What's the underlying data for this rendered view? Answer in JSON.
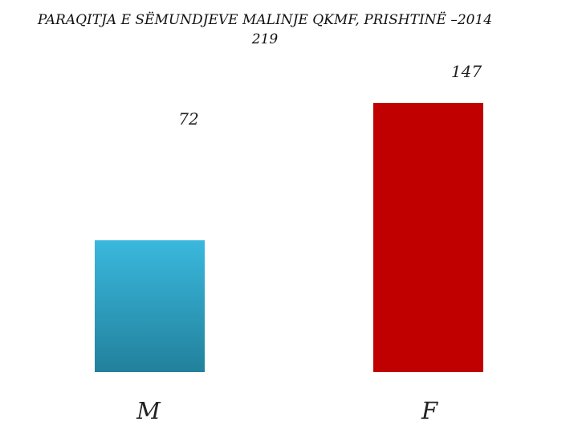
{
  "chart_data": {
    "type": "bar",
    "title": "PARAQITJA E SËMUNDJEVE MALINJE QKMF, PRISHTINË –2014",
    "subtitle": "219",
    "categories": [
      "M",
      "F"
    ],
    "values": [
      72,
      147
    ],
    "data_labels": [
      "72",
      "147"
    ],
    "colors": [
      "#35b3d6",
      "#c00000"
    ],
    "xlabel": "",
    "ylabel": "",
    "ylim": [
      0,
      147
    ],
    "grid": false,
    "legend": "none"
  }
}
